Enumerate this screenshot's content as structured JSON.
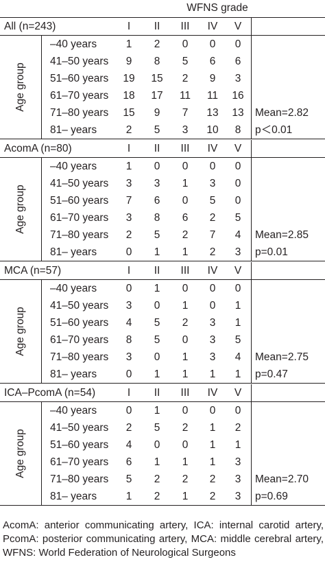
{
  "header": {
    "title": "WFNS grade"
  },
  "age_group_label": "Age group",
  "grade_labels": [
    "I",
    "II",
    "III",
    "IV",
    "V"
  ],
  "sections": [
    {
      "title": "All (n=243)",
      "rows": [
        {
          "age": "–40 years",
          "values": [
            "1",
            "2",
            "0",
            "0",
            "0"
          ],
          "stat": ""
        },
        {
          "age": "41–50 years",
          "values": [
            "9",
            "8",
            "5",
            "6",
            "6"
          ],
          "stat": ""
        },
        {
          "age": "51–60 years",
          "values": [
            "19",
            "15",
            "2",
            "9",
            "3"
          ],
          "stat": ""
        },
        {
          "age": "61–70 years",
          "values": [
            "18",
            "17",
            "11",
            "11",
            "16"
          ],
          "stat": ""
        },
        {
          "age": "71–80 years",
          "values": [
            "15",
            "9",
            "7",
            "13",
            "13"
          ],
          "stat": "Mean=2.82"
        },
        {
          "age": "81– years",
          "values": [
            "2",
            "5",
            "3",
            "10",
            "8"
          ],
          "stat": "p＜0.01"
        }
      ]
    },
    {
      "title": "AcomA (n=80)",
      "rows": [
        {
          "age": "–40 years",
          "values": [
            "1",
            "0",
            "0",
            "0",
            "0"
          ],
          "stat": ""
        },
        {
          "age": "41–50 years",
          "values": [
            "3",
            "3",
            "1",
            "3",
            "0"
          ],
          "stat": ""
        },
        {
          "age": "51–60 years",
          "values": [
            "7",
            "6",
            "0",
            "5",
            "0"
          ],
          "stat": ""
        },
        {
          "age": "61–70 years",
          "values": [
            "3",
            "8",
            "6",
            "2",
            "5"
          ],
          "stat": ""
        },
        {
          "age": "71–80 years",
          "values": [
            "2",
            "5",
            "2",
            "7",
            "4"
          ],
          "stat": "Mean=2.85"
        },
        {
          "age": "81– years",
          "values": [
            "0",
            "1",
            "1",
            "2",
            "3"
          ],
          "stat": "p=0.01"
        }
      ]
    },
    {
      "title": "MCA (n=57)",
      "rows": [
        {
          "age": "–40 years",
          "values": [
            "0",
            "1",
            "0",
            "0",
            "0"
          ],
          "stat": ""
        },
        {
          "age": "41–50 years",
          "values": [
            "3",
            "0",
            "1",
            "0",
            "1"
          ],
          "stat": ""
        },
        {
          "age": "51–60 years",
          "values": [
            "4",
            "5",
            "2",
            "3",
            "1"
          ],
          "stat": ""
        },
        {
          "age": "61–70 years",
          "values": [
            "8",
            "5",
            "0",
            "3",
            "5"
          ],
          "stat": ""
        },
        {
          "age": "71–80 years",
          "values": [
            "3",
            "0",
            "1",
            "3",
            "4"
          ],
          "stat": "Mean=2.75"
        },
        {
          "age": "81– years",
          "values": [
            "0",
            "1",
            "1",
            "1",
            "1"
          ],
          "stat": "p=0.47"
        }
      ]
    },
    {
      "title": "ICA–PcomA (n=54)",
      "rows": [
        {
          "age": "–40 years",
          "values": [
            "0",
            "1",
            "0",
            "0",
            "0"
          ],
          "stat": ""
        },
        {
          "age": "41–50 years",
          "values": [
            "2",
            "5",
            "2",
            "1",
            "2"
          ],
          "stat": ""
        },
        {
          "age": "51–60 years",
          "values": [
            "4",
            "0",
            "0",
            "1",
            "1"
          ],
          "stat": ""
        },
        {
          "age": "61–70 years",
          "values": [
            "6",
            "1",
            "1",
            "1",
            "3"
          ],
          "stat": ""
        },
        {
          "age": "71–80 years",
          "values": [
            "5",
            "2",
            "2",
            "2",
            "3"
          ],
          "stat": "Mean=2.70"
        },
        {
          "age": "81– years",
          "values": [
            "1",
            "2",
            "1",
            "2",
            "3"
          ],
          "stat": "p=0.69"
        }
      ]
    }
  ],
  "footnote": "AcomA: anterior communicating artery, ICA: internal carotid artery, PcomA: posterior communicating artery, MCA: middle cerebral artery, WFNS: World Federation of Neurological Surgeons"
}
